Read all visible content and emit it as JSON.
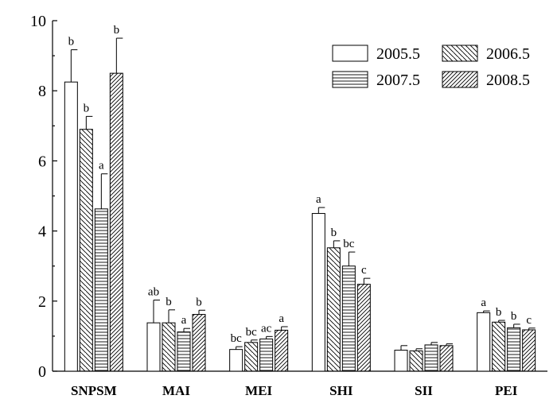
{
  "chart_data": {
    "type": "bar",
    "categories": [
      "SNPSM",
      "MAI",
      "MEI",
      "SHI",
      "SII",
      "PEI"
    ],
    "ylim": [
      0,
      10
    ],
    "yticks": [
      "0",
      "2",
      "4",
      "6",
      "8",
      "10"
    ],
    "legend_position": "top-right",
    "grid": false,
    "series": [
      {
        "name": "2005.5",
        "pattern": "blank",
        "values": [
          8.25,
          1.38,
          0.62,
          4.5,
          0.6,
          1.67
        ],
        "errors": [
          0.92,
          0.65,
          0.08,
          0.17,
          0.13,
          0.05
        ],
        "letters": [
          "b",
          "ab",
          "bc",
          "a",
          "",
          "a"
        ]
      },
      {
        "name": "2006.5",
        "pattern": "backslash",
        "values": [
          6.9,
          1.38,
          0.82,
          3.52,
          0.58,
          1.4
        ],
        "errors": [
          0.37,
          0.37,
          0.07,
          0.2,
          0.06,
          0.05
        ],
        "letters": [
          "b",
          "b",
          "bc",
          "b",
          "",
          "b"
        ]
      },
      {
        "name": "2007.5",
        "pattern": "horizontal",
        "values": [
          4.63,
          1.12,
          0.92,
          3.0,
          0.75,
          1.24
        ],
        "errors": [
          1.0,
          0.1,
          0.07,
          0.4,
          0.07,
          0.1
        ],
        "letters": [
          "a",
          "a",
          "ac",
          "bc",
          "",
          "b"
        ]
      },
      {
        "name": "2008.5",
        "pattern": "slash",
        "values": [
          8.5,
          1.62,
          1.17,
          2.48,
          0.73,
          1.18
        ],
        "errors": [
          1.0,
          0.12,
          0.1,
          0.17,
          0.05,
          0.05
        ],
        "letters": [
          "b",
          "b",
          "a",
          "c",
          "",
          "c"
        ]
      }
    ],
    "colors": {
      "stroke": "#000000",
      "fill": "#ffffff"
    }
  }
}
